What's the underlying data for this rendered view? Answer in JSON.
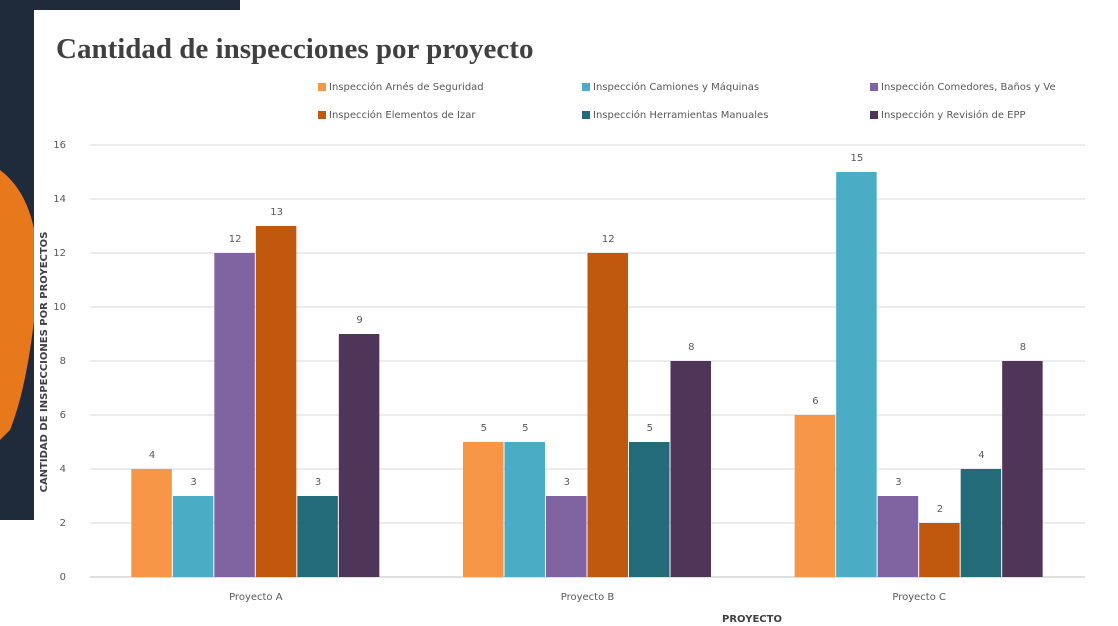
{
  "chart_data": {
    "type": "bar",
    "title": "Cantidad de inspecciones por proyecto",
    "x_label": "PROYECTO",
    "y_label": "CANTIDAD DE INSPECCIONES POR PROYECTOS",
    "categories": [
      "Proyecto A",
      "Proyecto B",
      "Proyecto C"
    ],
    "series": [
      {
        "name": "Inspección Arnés de Seguridad",
        "color": "#f79646",
        "values": [
          4,
          5,
          6
        ]
      },
      {
        "name": "Inspección Camiones y Máquinas",
        "color": "#4bacc6",
        "values": [
          3,
          5,
          15
        ]
      },
      {
        "name": "Inspección Comedores, Baños y Ve",
        "color": "#8064a2",
        "values": [
          12,
          3,
          3
        ]
      },
      {
        "name": "Inspección Elementos de Izar",
        "color": "#c0580e",
        "values": [
          13,
          12,
          2
        ]
      },
      {
        "name": "Inspección Herramientas Manuales",
        "color": "#246b7a",
        "values": [
          3,
          5,
          4
        ]
      },
      {
        "name": "Inspección y Revisión de EPP",
        "color": "#4f3557",
        "values": [
          9,
          8,
          8
        ]
      }
    ],
    "ylim": [
      0,
      16
    ],
    "yticks": [
      0,
      2,
      4,
      6,
      8,
      10,
      12,
      14,
      16
    ],
    "grid": true,
    "legend": "top"
  }
}
